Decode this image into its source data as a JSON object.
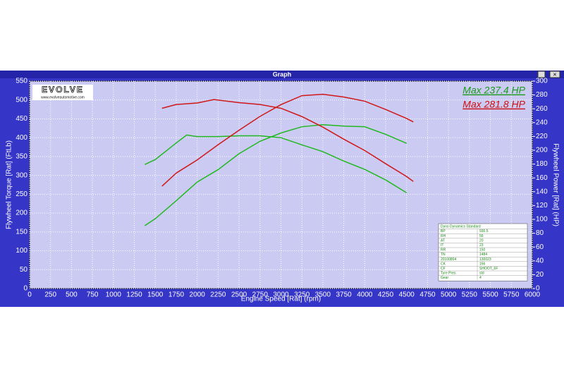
{
  "window_title": "Graph",
  "logo": {
    "brand": "EVOLVE",
    "url": "www.evolveautomotive.com"
  },
  "chart_data": {
    "type": "line",
    "xlabel": "Engine Speed [Rat] (rpm)",
    "ylabel": "Flywheel Torque [Rat] (FtLb)",
    "y2label": "Flywheel Power [Rat] (HP)",
    "xlim": [
      0,
      6000
    ],
    "xticks": [
      0,
      250,
      500,
      750,
      1000,
      1250,
      1500,
      1750,
      2000,
      2250,
      2500,
      2750,
      3000,
      3250,
      3500,
      3750,
      4000,
      4250,
      4500,
      4750,
      5000,
      5250,
      5500,
      5750,
      6000
    ],
    "ylim": [
      0,
      550
    ],
    "yticks": [
      0,
      50,
      100,
      150,
      200,
      250,
      300,
      350,
      400,
      450,
      500,
      550
    ],
    "y2lim": [
      0,
      300
    ],
    "y2ticks": [
      0,
      20,
      40,
      60,
      80,
      100,
      120,
      140,
      160,
      180,
      200,
      220,
      240,
      260,
      280,
      300
    ],
    "grid": true,
    "annotations": [
      {
        "text": "Max 237.4 HP",
        "color": "#1a9a1a"
      },
      {
        "text": "Max 281.8 HP",
        "color": "#d01010"
      }
    ],
    "series": [
      {
        "color": "#22b822",
        "axis": "y",
        "x": [
          1375,
          1500,
          1750,
          1875,
          2000,
          2250,
          2500,
          2750,
          3000,
          3250,
          3500,
          3750,
          4000,
          4250,
          4500
        ],
        "values": [
          329,
          342,
          386,
          407,
          403,
          403,
          405,
          405,
          400,
          381,
          363,
          338,
          316,
          288,
          254
        ]
      },
      {
        "color": "#22b822",
        "axis": "y2",
        "x": [
          1375,
          1500,
          1750,
          2000,
          2250,
          2500,
          2750,
          3000,
          3250,
          3500,
          3750,
          4000,
          4250,
          4500
        ],
        "values": [
          91,
          101,
          127,
          154,
          172,
          195,
          213,
          225,
          234,
          237,
          235,
          234,
          223,
          210
        ]
      },
      {
        "color": "#d01818",
        "axis": "y",
        "x": [
          1580,
          1750,
          2000,
          2200,
          2500,
          2750,
          3000,
          3250,
          3500,
          3750,
          4000,
          4250,
          4500,
          4580
        ],
        "values": [
          478,
          488,
          492,
          501,
          493,
          488,
          478,
          456,
          428,
          396,
          366,
          331,
          297,
          284
        ]
      },
      {
        "color": "#d01818",
        "axis": "y2",
        "x": [
          1580,
          1750,
          2000,
          2250,
          2500,
          2750,
          3000,
          3250,
          3500,
          3750,
          4000,
          4250,
          4500,
          4580
        ],
        "values": [
          148,
          167,
          186,
          208,
          229,
          249,
          266,
          279,
          281,
          277,
          271,
          259,
          246,
          241
        ]
      }
    ]
  },
  "info_table": {
    "title": "Dyno Dynamics Standard",
    "rows": [
      [
        "BP",
        "930.5"
      ],
      [
        "RH",
        "56"
      ],
      [
        "AT",
        "20"
      ],
      [
        "IT",
        "23"
      ],
      [
        "RR",
        "150"
      ],
      [
        "TN",
        "1484"
      ],
      [
        "20100804",
        "130023"
      ],
      [
        "CK",
        "156"
      ],
      [
        "CF",
        "SHOOT_6F"
      ],
      [
        "Tyre Pres.",
        "std"
      ],
      [
        "Gear",
        "4"
      ]
    ]
  }
}
